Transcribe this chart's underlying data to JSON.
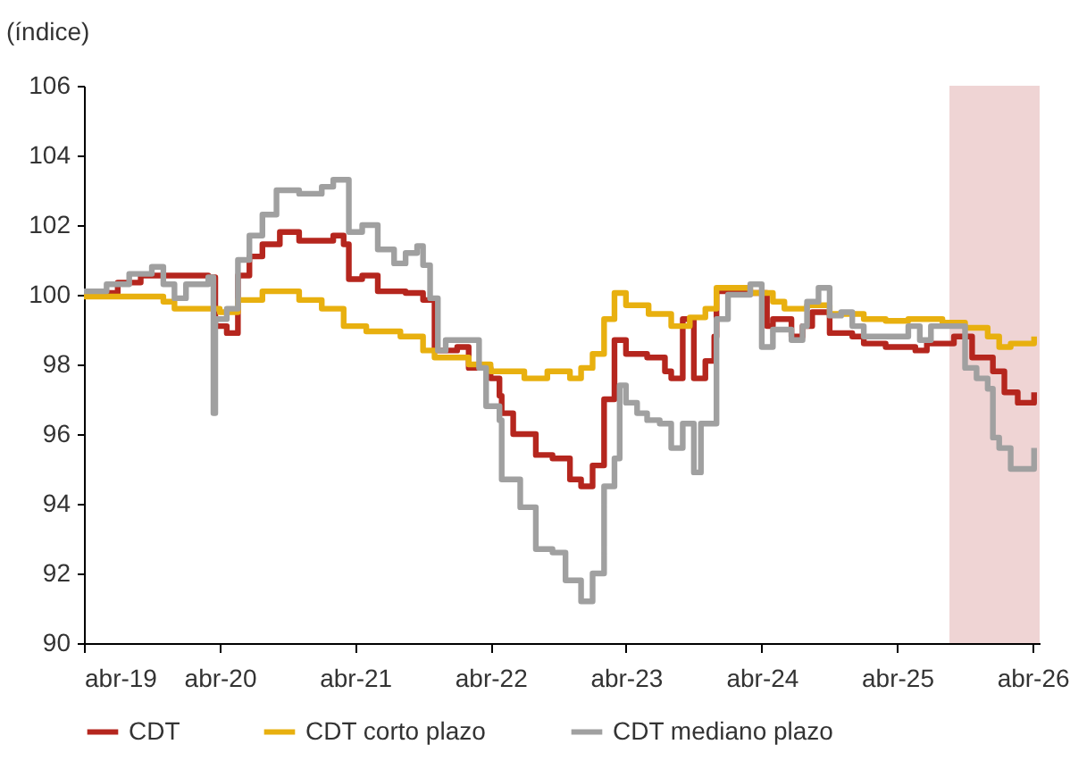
{
  "chart_data": {
    "type": "step",
    "ylabel": "(índice)",
    "xlim": [
      "2019-04-01",
      "2026-04-20"
    ],
    "xticks": [
      {
        "value": "2019-04",
        "label": "abr-19"
      },
      {
        "value": "2020-04",
        "label": "abr-20"
      },
      {
        "value": "2021-04",
        "label": "abr-21"
      },
      {
        "value": "2022-04",
        "label": "abr-22"
      },
      {
        "value": "2023-04",
        "label": "abr-23"
      },
      {
        "value": "2024-04",
        "label": "abr-24"
      },
      {
        "value": "2025-04",
        "label": "abr-25"
      },
      {
        "value": "2026-04",
        "label": "abr-26"
      }
    ],
    "ylim": [
      90,
      106
    ],
    "yticks": [
      90,
      92,
      94,
      96,
      98,
      100,
      102,
      104,
      106
    ],
    "grid": false,
    "legend": "bottom",
    "line_style": "solid",
    "marker": "none",
    "bands": [
      {
        "axis": "x",
        "from": "2025-08-20",
        "to": "2026-04-20",
        "color": "#efd4d4"
      }
    ],
    "series": [
      {
        "name": "CDT",
        "color": "#b5261e",
        "x": [
          "2019-04-01",
          "2019-07-01",
          "2019-09-01",
          "2020-03-01",
          "2020-03-20",
          "2020-04-20",
          "2020-05-20",
          "2020-06-20",
          "2020-07-25",
          "2020-09-10",
          "2020-11-01",
          "2021-02-01",
          "2021-03-01",
          "2021-03-15",
          "2021-04-20",
          "2021-06-01",
          "2021-08-15",
          "2021-10-01",
          "2021-11-01",
          "2022-01-01",
          "2022-02-01",
          "2022-04-01",
          "2022-04-25",
          "2022-05-01",
          "2022-06-01",
          "2022-08-01",
          "2022-09-15",
          "2022-11-01",
          "2022-12-01",
          "2023-01-01",
          "2023-02-01",
          "2023-03-01",
          "2023-04-01",
          "2023-05-28",
          "2023-07-15",
          "2023-08-01",
          "2023-09-01",
          "2023-10-01",
          "2023-11-01",
          "2023-11-25",
          "2023-12-01",
          "2024-03-01",
          "2024-04-15",
          "2024-05-01",
          "2024-06-20",
          "2024-07-20",
          "2024-08-15",
          "2024-10-01",
          "2024-12-01",
          "2025-01-01",
          "2025-03-01",
          "2025-05-20",
          "2025-06-20",
          "2025-09-01",
          "2025-10-20",
          "2025-12-15",
          "2026-01-15",
          "2026-02-20",
          "2026-04-05"
        ],
        "values": [
          100.05,
          100.35,
          100.55,
          100.5,
          99.1,
          98.9,
          100.55,
          101.1,
          101.45,
          101.8,
          101.55,
          101.7,
          101.45,
          100.45,
          100.55,
          100.1,
          100.05,
          99.85,
          98.4,
          98.5,
          97.9,
          97.6,
          97.1,
          96.6,
          96.0,
          95.4,
          95.3,
          94.7,
          94.5,
          95.1,
          97.0,
          98.7,
          98.3,
          98.2,
          97.8,
          97.6,
          99.3,
          97.6,
          98.1,
          98.8,
          100.1,
          100.05,
          99.1,
          99.3,
          98.8,
          99.1,
          99.5,
          98.9,
          98.8,
          98.6,
          98.5,
          98.4,
          98.6,
          98.8,
          98.2,
          97.8,
          97.2,
          96.9,
          97.2
        ]
      },
      {
        "name": "CDT corto plazo",
        "color": "#e8b00f",
        "x": [
          "2019-04-01",
          "2019-11-01",
          "2019-12-01",
          "2020-04-01",
          "2020-05-20",
          "2020-07-25",
          "2020-11-01",
          "2021-01-01",
          "2021-03-01",
          "2021-05-01",
          "2021-08-01",
          "2021-10-01",
          "2021-11-01",
          "2022-02-01",
          "2022-04-01",
          "2022-07-01",
          "2022-09-01",
          "2022-11-01",
          "2022-12-01",
          "2023-01-01",
          "2023-02-01",
          "2023-03-01",
          "2023-04-01",
          "2023-06-01",
          "2023-08-01",
          "2023-09-20",
          "2023-11-01",
          "2023-12-01",
          "2024-03-01",
          "2024-05-01",
          "2024-06-01",
          "2024-08-01",
          "2024-10-01",
          "2025-01-01",
          "2025-03-01",
          "2025-05-01",
          "2025-08-01",
          "2025-10-01",
          "2025-12-01",
          "2026-01-01",
          "2026-02-01",
          "2026-04-05"
        ],
        "values": [
          99.95,
          99.8,
          99.6,
          99.5,
          99.85,
          100.1,
          99.85,
          99.6,
          99.1,
          98.95,
          98.8,
          98.4,
          98.2,
          98.0,
          97.8,
          97.6,
          97.8,
          97.6,
          97.9,
          98.3,
          99.3,
          100.05,
          99.7,
          99.45,
          99.1,
          99.35,
          99.6,
          100.2,
          100.05,
          99.8,
          99.6,
          99.7,
          99.45,
          99.3,
          99.25,
          99.3,
          99.2,
          99.05,
          98.8,
          98.5,
          98.6,
          98.8
        ]
      },
      {
        "name": "CDT mediano plazo",
        "color": "#a0a0a0",
        "x": [
          "2019-04-01",
          "2019-06-01",
          "2019-08-01",
          "2019-10-01",
          "2019-11-01",
          "2019-12-01",
          "2020-01-01",
          "2020-03-01",
          "2020-03-15",
          "2020-03-20",
          "2020-04-20",
          "2020-05-20",
          "2020-06-20",
          "2020-07-25",
          "2020-09-01",
          "2020-11-01",
          "2021-01-01",
          "2021-02-01",
          "2021-03-15",
          "2021-04-20",
          "2021-06-01",
          "2021-07-15",
          "2021-08-15",
          "2021-09-15",
          "2021-10-01",
          "2021-10-20",
          "2021-11-10",
          "2021-12-01",
          "2022-03-01",
          "2022-03-20",
          "2022-04-25",
          "2022-05-01",
          "2022-06-20",
          "2022-08-01",
          "2022-09-15",
          "2022-10-20",
          "2022-12-01",
          "2023-01-01",
          "2023-02-01",
          "2023-03-01",
          "2023-03-15",
          "2023-04-01",
          "2023-05-01",
          "2023-05-28",
          "2023-07-01",
          "2023-08-01",
          "2023-09-01",
          "2023-10-01",
          "2023-10-20",
          "2023-12-01",
          "2024-01-01",
          "2024-03-01",
          "2024-04-01",
          "2024-05-01",
          "2024-06-20",
          "2024-07-20",
          "2024-08-01",
          "2024-09-01",
          "2024-10-01",
          "2024-11-01",
          "2024-12-01",
          "2025-01-01",
          "2025-03-01",
          "2025-05-01",
          "2025-06-01",
          "2025-07-01",
          "2025-09-01",
          "2025-10-01",
          "2025-11-01",
          "2025-12-01",
          "2025-12-15",
          "2026-01-01",
          "2026-02-01",
          "2026-04-05"
        ],
        "values": [
          100.1,
          100.3,
          100.6,
          100.8,
          100.3,
          99.9,
          100.3,
          100.5,
          96.6,
          99.3,
          99.6,
          101.0,
          101.7,
          102.3,
          103.0,
          102.9,
          103.1,
          103.3,
          101.8,
          102.0,
          101.3,
          100.9,
          101.2,
          101.4,
          100.85,
          99.9,
          98.4,
          98.7,
          97.9,
          96.8,
          96.4,
          94.7,
          93.9,
          92.7,
          92.6,
          91.8,
          91.2,
          92.0,
          94.5,
          95.3,
          97.4,
          96.9,
          96.6,
          96.4,
          96.3,
          95.6,
          96.3,
          94.9,
          96.3,
          99.3,
          100.0,
          100.3,
          98.5,
          99.0,
          98.7,
          99.1,
          99.8,
          100.2,
          99.4,
          99.5,
          99.1,
          98.8,
          98.8,
          99.1,
          98.7,
          99.1,
          99.1,
          97.9,
          97.6,
          97.3,
          95.9,
          95.6,
          95.0,
          95.6
        ]
      }
    ]
  }
}
